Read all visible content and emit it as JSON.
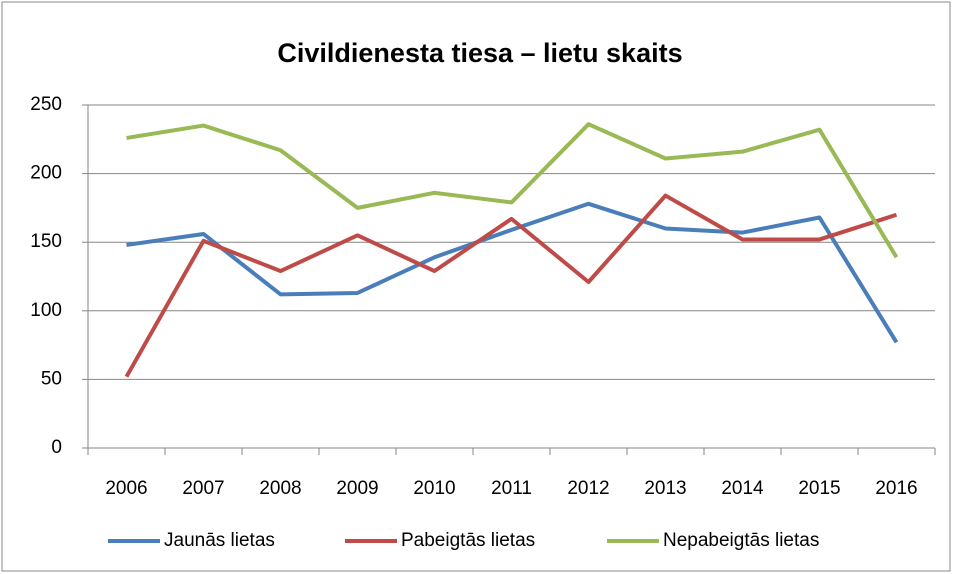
{
  "chart_data": {
    "type": "line",
    "title": "Civildienesta tiesa – lietu skaits",
    "categories": [
      "2006",
      "2007",
      "2008",
      "2009",
      "2010",
      "2011",
      "2012",
      "2013",
      "2014",
      "2015",
      "2016"
    ],
    "series": [
      {
        "name": "Jaunās lietas",
        "color": "#4a7ebb",
        "values": [
          148,
          156,
          112,
          113,
          139,
          159,
          178,
          160,
          157,
          168,
          77
        ]
      },
      {
        "name": "Pabeigtās lietas",
        "color": "#be4b48",
        "values": [
          52,
          151,
          129,
          155,
          129,
          167,
          121,
          184,
          152,
          152,
          170
        ]
      },
      {
        "name": "Nepabeigtās lietas",
        "color": "#98b954",
        "values": [
          226,
          235,
          217,
          175,
          186,
          179,
          236,
          211,
          216,
          232,
          139
        ]
      }
    ],
    "ylim": [
      0,
      250
    ],
    "yticks": [
      0,
      50,
      100,
      150,
      200,
      250
    ],
    "grid": true,
    "legend": "bottom"
  }
}
